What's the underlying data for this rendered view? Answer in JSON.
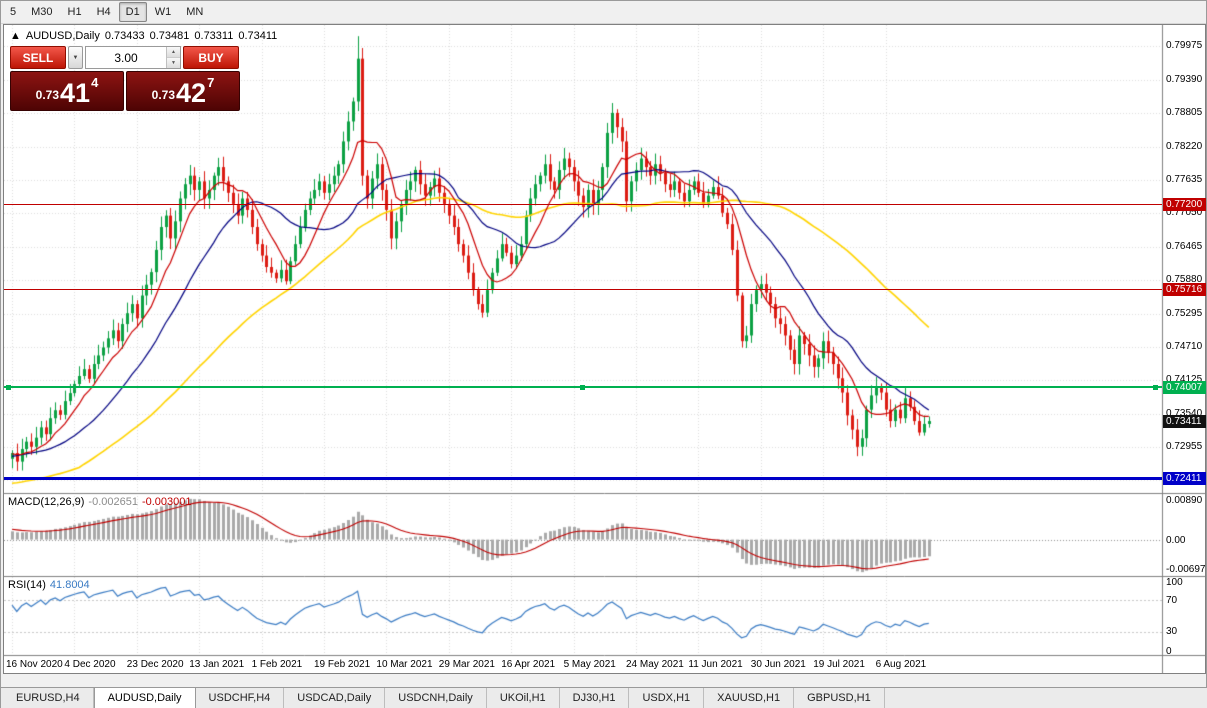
{
  "toolbar": {
    "timeframes": [
      "5",
      "M30",
      "H1",
      "H4",
      "D1",
      "W1",
      "MN"
    ],
    "active": "D1"
  },
  "symbol_line": {
    "arrow": "▲",
    "title": "AUDUSD,Daily",
    "open": "0.73433",
    "high": "0.73481",
    "low": "0.73311",
    "close": "0.73411"
  },
  "trade_panel": {
    "sell_label": "SELL",
    "buy_label": "BUY",
    "volume": "3.00",
    "sell_price": {
      "small": "0.73",
      "big": "41",
      "sup": "4"
    },
    "buy_price": {
      "small": "0.73",
      "big": "42",
      "sup": "7"
    }
  },
  "price_axis": {
    "price_max": 0.8035,
    "price_min": 0.7215,
    "ticks": [
      "0.79975",
      "0.79390",
      "0.78805",
      "0.78220",
      "0.77635",
      "0.77050",
      "0.76465",
      "0.75880",
      "0.75295",
      "0.74710",
      "0.74125",
      "0.73540",
      "0.72955",
      "0.72370"
    ]
  },
  "levels": [
    {
      "price": 0.772,
      "label": "0.77200",
      "color": "#c00000",
      "thickness": 1,
      "name": "resistance-line-upper",
      "handles": false
    },
    {
      "price": 0.75716,
      "label": "0.75716",
      "color": "#c00000",
      "thickness": 1,
      "name": "resistance-line-lower",
      "handles": false
    },
    {
      "price": 0.74007,
      "label": "0.74007",
      "color": "#00b050",
      "thickness": 2,
      "name": "support-line-green",
      "handles": true
    },
    {
      "price": 0.72411,
      "label": "0.72411",
      "color": "#0000c8",
      "thickness": 3,
      "name": "support-line-blue",
      "handles": false
    }
  ],
  "current_price": {
    "value": 0.73411,
    "label": "0.73411"
  },
  "macd": {
    "title": "MACD(12,26,9)",
    "value": "-0.002651",
    "signal": "-0.003001",
    "axis_top": "0.00890",
    "axis_zero": "0.00",
    "axis_bottom": "-0.00697"
  },
  "rsi": {
    "title": "RSI(14)",
    "value": "41.8004",
    "axis": [
      "100",
      "70",
      "30",
      "0"
    ],
    "levels": [
      70,
      30
    ]
  },
  "tabs": [
    "EURUSD,H4",
    "AUDUSD,Daily",
    "USDCHF,H4",
    "USDCAD,Daily",
    "USDCNH,Daily",
    "UKOil,H1",
    "DJ30,H1",
    "USDX,H1",
    "XAUUSD,H1",
    "GBPUSD,H1"
  ],
  "active_tab": "AUDUSD,Daily",
  "chart_data": {
    "type": "candlestick",
    "title": "AUDUSD,Daily",
    "symbol": "AUDUSD",
    "timeframe": "Daily",
    "ylim": [
      0.7215,
      0.8035
    ],
    "label_every": 13,
    "x_labels": [
      "16 Nov 2020",
      "4 Dec 2020",
      "23 Dec 2020",
      "13 Jan 2021",
      "1 Feb 2021",
      "19 Feb 2021",
      "10 Mar 2021",
      "29 Mar 2021",
      "16 Apr 2021",
      "5 May 2021",
      "24 May 2021",
      "11 Jun 2021",
      "30 Jun 2021",
      "19 Jul 2021",
      "6 Aug 2021"
    ],
    "overlays": [
      {
        "name": "ma-fast",
        "period": 8,
        "color": "#cc0000"
      },
      {
        "name": "ma-mid",
        "period": 21,
        "color": "#000080"
      },
      {
        "name": "ma-slow",
        "period": 55,
        "color": "#ffd400"
      }
    ],
    "warmup_closes": [
      0.712,
      0.7132,
      0.7125,
      0.714,
      0.7152,
      0.7145,
      0.716,
      0.7171,
      0.7165,
      0.718,
      0.7192,
      0.7185,
      0.72,
      0.7211,
      0.7205,
      0.722,
      0.7231,
      0.7225,
      0.724,
      0.7251,
      0.7245,
      0.726,
      0.7271,
      0.7265,
      0.728,
      0.7291,
      0.7285,
      0.729,
      0.7281,
      0.7275,
      0.7285,
      0.7278,
      0.729,
      0.7283,
      0.7288,
      0.728,
      0.7286,
      0.7279,
      0.7287,
      0.7282
    ],
    "closes": [
      0.7285,
      0.727,
      0.7292,
      0.7305,
      0.7296,
      0.7312,
      0.733,
      0.7318,
      0.7346,
      0.736,
      0.7352,
      0.7376,
      0.739,
      0.7406,
      0.742,
      0.7432,
      0.7415,
      0.7441,
      0.7456,
      0.747,
      0.7486,
      0.75,
      0.7481,
      0.7511,
      0.753,
      0.7546,
      0.7521,
      0.7561,
      0.758,
      0.7602,
      0.7641,
      0.7681,
      0.7701,
      0.7661,
      0.7691,
      0.7731,
      0.7756,
      0.7771,
      0.7746,
      0.7761,
      0.7731,
      0.7746,
      0.7771,
      0.7786,
      0.7761,
      0.7741,
      0.7721,
      0.7701,
      0.7731,
      0.7711,
      0.7681,
      0.7651,
      0.7631,
      0.7611,
      0.7601,
      0.7591,
      0.7606,
      0.7586,
      0.7621,
      0.7651,
      0.7681,
      0.7711,
      0.7731,
      0.7746,
      0.7761,
      0.7741,
      0.7756,
      0.7771,
      0.7791,
      0.7831,
      0.7866,
      0.7901,
      0.7976,
      0.7771,
      0.7731,
      0.7766,
      0.7791,
      0.7746,
      0.7711,
      0.7661,
      0.7691,
      0.7721,
      0.7746,
      0.7761,
      0.7781,
      0.7756,
      0.7736,
      0.7751,
      0.7766,
      0.7741,
      0.7721,
      0.7701,
      0.7681,
      0.7651,
      0.7631,
      0.7601,
      0.7571,
      0.7546,
      0.7531,
      0.7571,
      0.7601,
      0.7626,
      0.7651,
      0.7636,
      0.7616,
      0.7631,
      0.7651,
      0.7701,
      0.7731,
      0.7756,
      0.7771,
      0.7791,
      0.7761,
      0.7746,
      0.7781,
      0.7801,
      0.7786,
      0.7761,
      0.7736,
      0.7716,
      0.7746,
      0.7721,
      0.7746,
      0.7786,
      0.7846,
      0.7881,
      0.7856,
      0.7831,
      0.7726,
      0.7761,
      0.7781,
      0.7801,
      0.7786,
      0.7771,
      0.7791,
      0.7776,
      0.7756,
      0.7746,
      0.7761,
      0.7741,
      0.7726,
      0.7746,
      0.7761,
      0.7741,
      0.7721,
      0.7736,
      0.7751,
      0.7736,
      0.7706,
      0.7686,
      0.7641,
      0.7561,
      0.7481,
      0.7491,
      0.7546,
      0.7571,
      0.7581,
      0.7566,
      0.7546,
      0.7521,
      0.7511,
      0.7491,
      0.7466,
      0.7441,
      0.7491,
      0.7476,
      0.7456,
      0.7436,
      0.7451,
      0.7481,
      0.7461,
      0.7441,
      0.7416,
      0.7391,
      0.7351,
      0.7326,
      0.7296,
      0.7311,
      0.7361,
      0.7386,
      0.7401,
      0.7391,
      0.7361,
      0.7341,
      0.7361,
      0.7346,
      0.7381,
      0.7366,
      0.7341,
      0.7321,
      0.7336,
      0.7341
    ]
  }
}
